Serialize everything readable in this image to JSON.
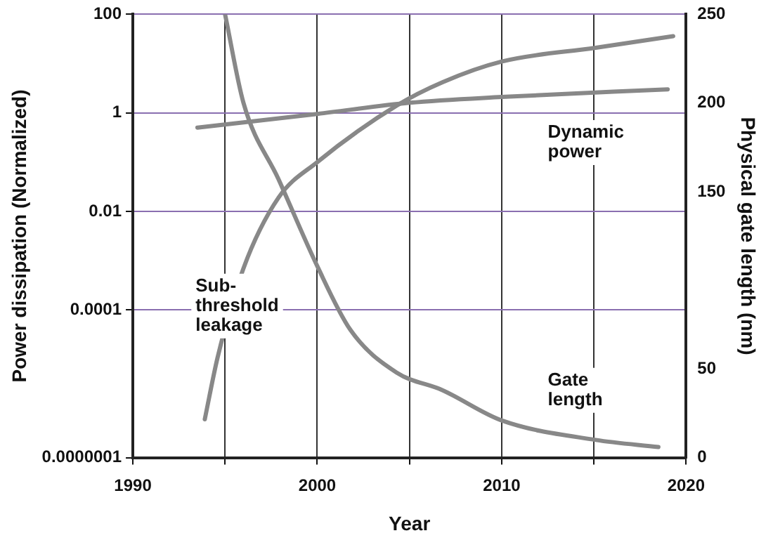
{
  "chart_data": {
    "type": "line",
    "xlabel": "Year",
    "ylabel": "Power dissipation (Normalized)",
    "y2label": "Physical gate length (nm)",
    "xlim": [
      1990,
      2020
    ],
    "xticks": [
      1990,
      {
        "value": 1995,
        "label": null
      },
      2000,
      {
        "value": 2005,
        "label": null
      },
      2010,
      {
        "value": 2015,
        "label": null
      },
      2020
    ],
    "ylim": [
      1e-07,
      100
    ],
    "yticks": [
      {
        "value": 1e-07,
        "label": "0.0000001"
      },
      0.0001,
      0.01,
      1,
      100
    ],
    "y2lim": [
      0,
      250
    ],
    "y2ticks": [
      0,
      50,
      150,
      200,
      250
    ],
    "log": "y",
    "grid": true,
    "legend": false,
    "marker": "none",
    "line_style": "solid",
    "series": [
      {
        "name": "Dynamic power",
        "color": "#888888",
        "axis": "y",
        "x": [
          1993.5,
          2000,
          2005,
          2010,
          2019
        ],
        "values": [
          0.5,
          0.95,
          1.6,
          2.1,
          3
        ]
      },
      {
        "name": "Sub-threshold leakage",
        "color": "#888888",
        "axis": "y",
        "x": [
          1993.9,
          1994.6,
          1996,
          1997.9,
          2000,
          2004.3,
          2006.8,
          2010,
          2015.1,
          2019.3
        ],
        "values": [
          6e-07,
          1.1e-05,
          0.0007,
          0.019,
          0.1,
          1.4,
          4.2,
          11,
          21,
          36
        ]
      },
      {
        "name": "Gate length",
        "color": "#888888",
        "axis": "y2",
        "x": [
          1995,
          1996,
          1997.9,
          2000,
          2001.8,
          2004.3,
          2006.8,
          2010,
          2015.1,
          2018.5
        ],
        "values": [
          250,
          200,
          157,
          108,
          72,
          48,
          38,
          21,
          10,
          6
        ]
      }
    ]
  }
}
